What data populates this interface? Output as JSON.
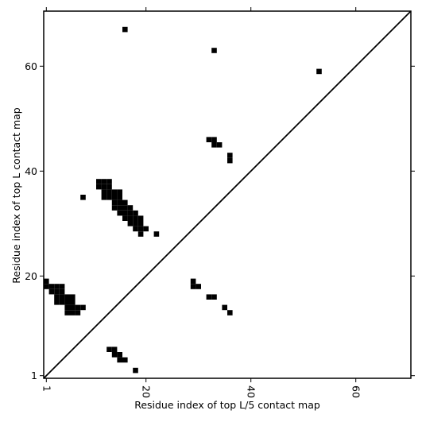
{
  "chart_data": {
    "type": "scatter",
    "marker": "square",
    "color": "#000000",
    "xlabel": "Residue index of top L/5 contact map",
    "ylabel": "Residue index of top L contact map",
    "xlim": [
      0.5,
      70.5
    ],
    "ylim": [
      0.5,
      70.5
    ],
    "xticks": [
      1,
      20,
      40,
      60
    ],
    "yticks": [
      1,
      20,
      40,
      60
    ],
    "x": [
      16,
      33,
      53,
      8,
      22,
      32,
      33,
      33,
      34,
      36,
      36,
      29,
      29,
      30,
      32,
      33,
      35,
      36,
      13,
      14,
      14,
      15,
      15,
      16,
      18,
      11,
      12,
      13,
      11,
      12,
      13,
      12,
      13,
      14,
      15,
      12,
      13,
      14,
      15,
      14,
      15,
      16,
      14,
      15,
      16,
      17,
      15,
      16,
      17,
      18,
      16,
      17,
      18,
      19,
      17,
      18,
      19,
      18,
      19,
      20,
      19,
      1,
      1,
      2,
      3,
      4,
      2,
      3,
      4,
      3,
      4,
      5,
      6,
      3,
      4,
      5,
      6,
      5,
      6,
      7,
      8,
      5,
      6,
      7
    ],
    "y": [
      67,
      63,
      59,
      35,
      28,
      46,
      46,
      45,
      45,
      43,
      42,
      19,
      18,
      18,
      16,
      16,
      14,
      13,
      6,
      6,
      5,
      5,
      4,
      4,
      2,
      38,
      38,
      38,
      37,
      37,
      37,
      36,
      36,
      36,
      36,
      35,
      35,
      35,
      35,
      34,
      34,
      34,
      33,
      33,
      33,
      33,
      32,
      32,
      32,
      32,
      31,
      31,
      31,
      31,
      30,
      30,
      30,
      29,
      29,
      29,
      28,
      19,
      18,
      18,
      18,
      18,
      17,
      17,
      17,
      16,
      16,
      16,
      16,
      15,
      15,
      15,
      15,
      14,
      14,
      14,
      14,
      13,
      13,
      13
    ]
  }
}
